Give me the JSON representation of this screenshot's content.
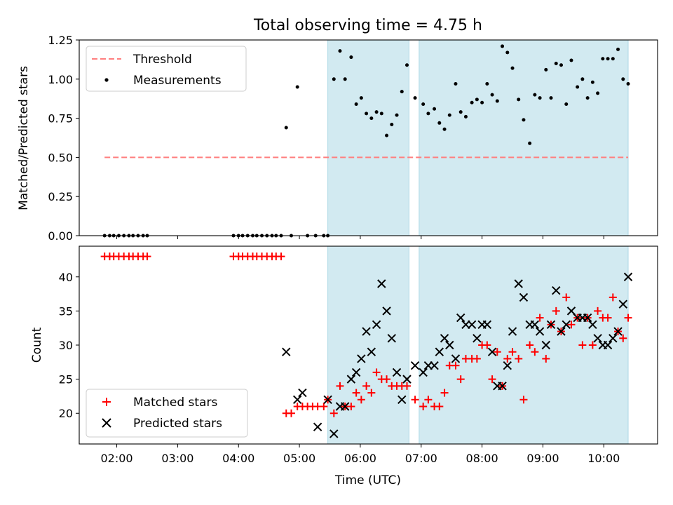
{
  "figure_title": "Total observing time = 4.75 h",
  "chart_data": [
    {
      "type": "scatter",
      "panel": "top",
      "xlabel": "",
      "ylabel": "Matched/Predicted stars",
      "xlim": [
        "01:23",
        "10:53"
      ],
      "ylim": [
        0,
        1.25
      ],
      "yticks": [
        0.0,
        0.25,
        0.5,
        0.75,
        1.0,
        1.25
      ],
      "ytick_labels": [
        "0.00",
        "0.25",
        "0.50",
        "0.75",
        "1.00",
        "1.25"
      ],
      "legend": {
        "position": "top-left",
        "entries": [
          "Threshold",
          "Measurements"
        ]
      },
      "threshold": {
        "name": "Threshold",
        "y": 0.5,
        "x_start": "01:48",
        "x_end": "10:24",
        "color": "#ff7f7f",
        "style": "dashed"
      },
      "shaded_spans": [
        [
          "05:28",
          "06:48"
        ],
        [
          "06:58",
          "10:24"
        ]
      ],
      "shade_color": "#add8e6",
      "series": [
        {
          "name": "Measurements",
          "color": "#000000",
          "x": [
            "01:48",
            "01:53",
            "01:57",
            "02:02",
            "02:07",
            "02:12",
            "02:16",
            "02:21",
            "02:26",
            "02:30",
            "03:55",
            "04:00",
            "04:04",
            "04:09",
            "04:14",
            "04:18",
            "04:23",
            "04:28",
            "04:33",
            "04:37",
            "04:42",
            "04:47",
            "04:52",
            "04:58",
            "05:08",
            "05:16",
            "05:24",
            "05:28",
            "05:34",
            "05:40",
            "05:45",
            "05:51",
            "05:56",
            "06:01",
            "06:06",
            "06:11",
            "06:16",
            "06:21",
            "06:26",
            "06:31",
            "06:36",
            "06:41",
            "06:46",
            "06:54",
            "07:02",
            "07:07",
            "07:13",
            "07:18",
            "07:23",
            "07:28",
            "07:34",
            "07:39",
            "07:44",
            "07:50",
            "07:55",
            "08:00",
            "08:05",
            "08:10",
            "08:15",
            "08:20",
            "08:25",
            "08:30",
            "08:36",
            "08:41",
            "08:47",
            "08:52",
            "08:57",
            "09:03",
            "09:08",
            "09:13",
            "09:18",
            "09:23",
            "09:28",
            "09:34",
            "09:39",
            "09:44",
            "09:49",
            "09:54",
            "09:59",
            "10:04",
            "10:09",
            "10:14",
            "10:19",
            "10:24"
          ],
          "y": [
            0,
            0,
            0,
            0,
            0,
            0,
            0,
            0,
            0,
            0,
            0,
            0,
            0,
            0,
            0,
            0,
            0,
            0,
            0,
            0,
            0,
            0.69,
            0,
            0.95,
            0,
            0,
            0,
            0,
            1.0,
            1.18,
            1.0,
            1.14,
            0.84,
            0.88,
            0.78,
            0.75,
            0.79,
            0.78,
            0.64,
            0.71,
            0.77,
            0.92,
            1.09,
            0.88,
            0.84,
            0.78,
            0.81,
            0.72,
            0.68,
            0.77,
            0.97,
            0.79,
            0.76,
            0.85,
            0.87,
            0.85,
            0.97,
            0.9,
            0.86,
            1.21,
            1.17,
            1.07,
            0.87,
            0.74,
            0.59,
            0.9,
            0.88,
            1.06,
            0.88,
            1.1,
            1.09,
            0.84,
            1.12,
            0.95,
            1.0,
            0.88,
            0.98,
            0.91,
            1.13,
            1.13,
            1.13,
            1.19,
            1.0,
            0.97
          ]
        }
      ]
    },
    {
      "type": "scatter",
      "panel": "bottom",
      "xlabel": "Time (UTC)",
      "ylabel": "Count",
      "xlim": [
        "01:23",
        "10:53"
      ],
      "ylim": [
        15.5,
        44.5
      ],
      "yticks": [
        20,
        25,
        30,
        35,
        40
      ],
      "ytick_labels": [
        "20",
        "25",
        "30",
        "35",
        "40"
      ],
      "xticks": [
        "02:00",
        "03:00",
        "04:00",
        "05:00",
        "06:00",
        "07:00",
        "08:00",
        "09:00",
        "10:00"
      ],
      "legend": {
        "position": "bottom-left",
        "entries": [
          "Matched stars",
          "Predicted stars"
        ]
      },
      "shaded_spans": [
        [
          "05:28",
          "06:48"
        ],
        [
          "06:58",
          "10:24"
        ]
      ],
      "shade_color": "#add8e6",
      "series": [
        {
          "name": "Matched stars",
          "marker": "plus",
          "color": "#ff0000",
          "x": [
            "01:48",
            "01:53",
            "01:57",
            "02:02",
            "02:07",
            "02:12",
            "02:16",
            "02:21",
            "02:26",
            "02:30",
            "03:55",
            "04:00",
            "04:04",
            "04:09",
            "04:14",
            "04:18",
            "04:23",
            "04:28",
            "04:33",
            "04:37",
            "04:42",
            "04:47",
            "04:52",
            "04:58",
            "05:03",
            "05:08",
            "05:13",
            "05:18",
            "05:24",
            "05:28",
            "05:34",
            "05:40",
            "05:45",
            "05:51",
            "05:56",
            "06:01",
            "06:06",
            "06:11",
            "06:16",
            "06:21",
            "06:26",
            "06:31",
            "06:36",
            "06:41",
            "06:46",
            "06:54",
            "07:02",
            "07:07",
            "07:13",
            "07:18",
            "07:23",
            "07:28",
            "07:34",
            "07:39",
            "07:44",
            "07:50",
            "07:55",
            "08:00",
            "08:05",
            "08:10",
            "08:15",
            "08:20",
            "08:25",
            "08:30",
            "08:36",
            "08:41",
            "08:47",
            "08:52",
            "08:57",
            "09:03",
            "09:08",
            "09:13",
            "09:18",
            "09:23",
            "09:28",
            "09:34",
            "09:39",
            "09:44",
            "09:49",
            "09:54",
            "09:59",
            "10:04",
            "10:09",
            "10:14",
            "10:19",
            "10:24"
          ],
          "y": [
            43,
            43,
            43,
            43,
            43,
            43,
            43,
            43,
            43,
            43,
            43,
            43,
            43,
            43,
            43,
            43,
            43,
            43,
            43,
            43,
            43,
            20,
            20,
            21,
            21,
            21,
            21,
            21,
            21,
            22,
            20,
            24,
            21,
            21,
            23,
            22,
            24,
            23,
            26,
            25,
            25,
            24,
            24,
            24,
            24,
            22,
            21,
            22,
            21,
            21,
            23,
            27,
            27,
            25,
            28,
            28,
            28,
            30,
            30,
            25,
            29,
            24,
            28,
            29,
            28,
            22,
            30,
            29,
            34,
            28,
            33,
            35,
            32,
            37,
            33,
            34,
            30,
            34,
            30,
            35,
            34,
            34,
            37,
            32,
            31,
            34
          ]
        },
        {
          "name": "Predicted stars",
          "marker": "x",
          "color": "#000000",
          "x": [
            "04:47",
            "04:58",
            "05:03",
            "05:18",
            "05:28",
            "05:34",
            "05:40",
            "05:45",
            "05:51",
            "05:56",
            "06:01",
            "06:06",
            "06:11",
            "06:16",
            "06:21",
            "06:26",
            "06:31",
            "06:36",
            "06:41",
            "06:46",
            "06:54",
            "07:02",
            "07:07",
            "07:13",
            "07:18",
            "07:23",
            "07:28",
            "07:34",
            "07:39",
            "07:44",
            "07:50",
            "07:55",
            "08:00",
            "08:05",
            "08:10",
            "08:15",
            "08:20",
            "08:25",
            "08:30",
            "08:36",
            "08:41",
            "08:47",
            "08:52",
            "08:57",
            "09:03",
            "09:08",
            "09:13",
            "09:18",
            "09:23",
            "09:28",
            "09:34",
            "09:39",
            "09:44",
            "09:49",
            "09:54",
            "09:59",
            "10:04",
            "10:09",
            "10:14",
            "10:19",
            "10:24"
          ],
          "y": [
            29,
            22,
            23,
            18,
            22,
            17,
            21,
            21,
            25,
            26,
            28,
            32,
            29,
            33,
            39,
            35,
            31,
            26,
            22,
            25,
            27,
            26,
            27,
            27,
            29,
            31,
            30,
            28,
            34,
            33,
            33,
            31,
            33,
            33,
            29,
            24,
            24,
            27,
            32,
            39,
            37,
            33,
            33,
            32,
            30,
            33,
            38,
            32,
            33,
            35,
            34,
            34,
            34,
            33,
            31,
            30,
            30,
            31,
            32,
            36,
            40
          ]
        }
      ]
    }
  ]
}
